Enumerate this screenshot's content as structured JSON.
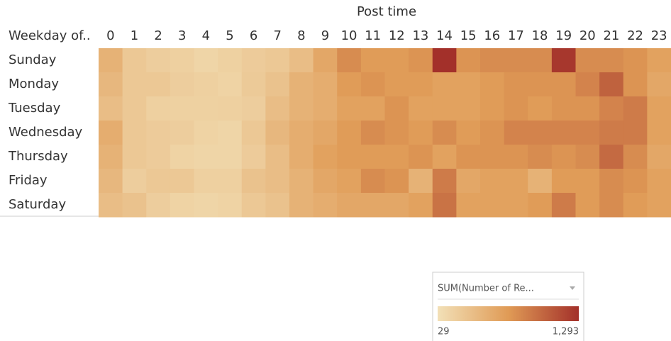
{
  "chart_data": {
    "type": "heatmap",
    "x_label": "Post time",
    "y_label": "Weekday of..",
    "x": [
      0,
      1,
      2,
      3,
      4,
      5,
      6,
      7,
      8,
      9,
      10,
      11,
      12,
      13,
      14,
      15,
      16,
      17,
      18,
      19,
      20,
      21,
      22,
      23
    ],
    "categories": [
      "Sunday",
      "Monday",
      "Tuesday",
      "Wednesday",
      "Thursday",
      "Friday",
      "Saturday"
    ],
    "values": [
      [
        450,
        250,
        200,
        180,
        130,
        170,
        220,
        250,
        350,
        550,
        750,
        650,
        650,
        700,
        1293,
        700,
        750,
        750,
        750,
        1250,
        750,
        750,
        700,
        600
      ],
      [
        400,
        250,
        250,
        200,
        180,
        150,
        230,
        300,
        450,
        500,
        650,
        700,
        650,
        650,
        600,
        600,
        650,
        700,
        700,
        700,
        800,
        1000,
        700,
        550
      ],
      [
        350,
        250,
        180,
        170,
        170,
        180,
        200,
        350,
        450,
        500,
        600,
        600,
        700,
        600,
        600,
        600,
        650,
        700,
        650,
        700,
        700,
        800,
        850,
        600
      ],
      [
        500,
        250,
        220,
        200,
        150,
        130,
        250,
        400,
        500,
        550,
        650,
        750,
        700,
        650,
        750,
        650,
        700,
        800,
        800,
        800,
        800,
        850,
        850,
        600
      ],
      [
        450,
        250,
        220,
        150,
        130,
        130,
        220,
        350,
        500,
        600,
        650,
        650,
        650,
        700,
        600,
        700,
        700,
        700,
        750,
        700,
        750,
        950,
        750,
        550
      ],
      [
        400,
        200,
        250,
        250,
        180,
        180,
        300,
        350,
        450,
        550,
        600,
        750,
        700,
        450,
        850,
        550,
        600,
        600,
        450,
        650,
        650,
        750,
        700,
        600
      ],
      [
        350,
        300,
        200,
        150,
        130,
        150,
        250,
        300,
        450,
        500,
        550,
        550,
        550,
        600,
        900,
        600,
        600,
        600,
        650,
        850,
        650,
        750,
        650,
        600
      ]
    ],
    "colorscale": {
      "title": "SUM(Number of Re...",
      "range": [
        29,
        1293
      ],
      "ticks": [
        29,
        {
          "value": 1293,
          "label": "1,293"
        }
      ],
      "colors": [
        "#f2e0b7",
        "#e09b56",
        "#a3302a"
      ]
    }
  }
}
